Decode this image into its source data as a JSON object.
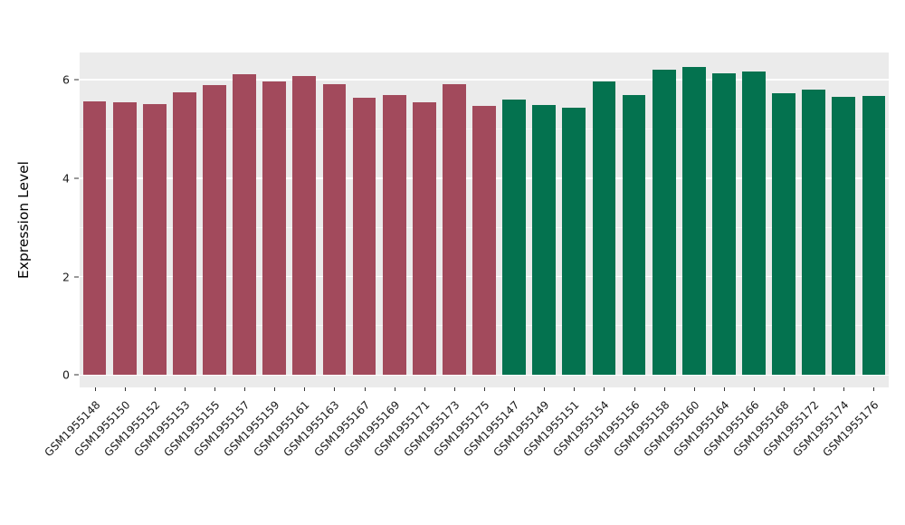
{
  "figure": {
    "background": "#FFFFFF"
  },
  "chart_data": {
    "type": "bar",
    "title": "",
    "xlabel": "",
    "ylabel": "Expression Level",
    "panel_bg": "#EBEBEB",
    "grid_color": "#FFFFFF",
    "grid": true,
    "legend_position": "none",
    "yticks": [
      0,
      2,
      4,
      6
    ],
    "minor_ticks": [
      1,
      3,
      5
    ],
    "ylim": [
      0,
      6.3
    ],
    "panel_range": [
      -0.25,
      6.55
    ],
    "tick_label_color": "#1A1A1A",
    "group_colors": {
      "group1": "#A24A5C",
      "group2": "#04724F"
    },
    "bars": [
      {
        "label": "GSM1955148",
        "value": 5.55,
        "group": "group1"
      },
      {
        "label": "GSM1955150",
        "value": 5.54,
        "group": "group1"
      },
      {
        "label": "GSM1955152",
        "value": 5.5,
        "group": "group1"
      },
      {
        "label": "GSM1955153",
        "value": 5.74,
        "group": "group1"
      },
      {
        "label": "GSM1955155",
        "value": 5.89,
        "group": "group1"
      },
      {
        "label": "GSM1955157",
        "value": 6.11,
        "group": "group1"
      },
      {
        "label": "GSM1955159",
        "value": 5.97,
        "group": "group1"
      },
      {
        "label": "GSM1955161",
        "value": 6.08,
        "group": "group1"
      },
      {
        "label": "GSM1955163",
        "value": 5.9,
        "group": "group1"
      },
      {
        "label": "GSM1955167",
        "value": 5.63,
        "group": "group1"
      },
      {
        "label": "GSM1955169",
        "value": 5.69,
        "group": "group1"
      },
      {
        "label": "GSM1955171",
        "value": 5.54,
        "group": "group1"
      },
      {
        "label": "GSM1955173",
        "value": 5.9,
        "group": "group1"
      },
      {
        "label": "GSM1955175",
        "value": 5.47,
        "group": "group1"
      },
      {
        "label": "GSM1955147",
        "value": 5.59,
        "group": "group2"
      },
      {
        "label": "GSM1955149",
        "value": 5.49,
        "group": "group2"
      },
      {
        "label": "GSM1955151",
        "value": 5.42,
        "group": "group2"
      },
      {
        "label": "GSM1955154",
        "value": 5.96,
        "group": "group2"
      },
      {
        "label": "GSM1955156",
        "value": 5.69,
        "group": "group2"
      },
      {
        "label": "GSM1955158",
        "value": 6.21,
        "group": "group2"
      },
      {
        "label": "GSM1955160",
        "value": 6.26,
        "group": "group2"
      },
      {
        "label": "GSM1955164",
        "value": 6.13,
        "group": "group2"
      },
      {
        "label": "GSM1955166",
        "value": 6.16,
        "group": "group2"
      },
      {
        "label": "GSM1955168",
        "value": 5.72,
        "group": "group2"
      },
      {
        "label": "GSM1955172",
        "value": 5.8,
        "group": "group2"
      },
      {
        "label": "GSM1955174",
        "value": 5.65,
        "group": "group2"
      },
      {
        "label": "GSM1955176",
        "value": 5.67,
        "group": "group2"
      }
    ]
  }
}
